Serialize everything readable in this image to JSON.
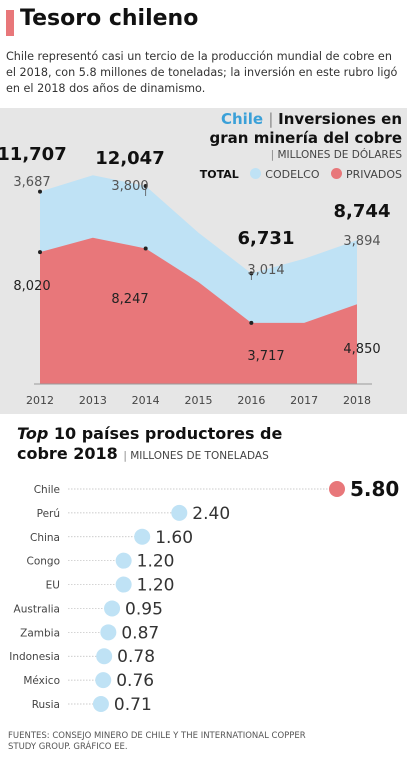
{
  "header": {
    "title": "Tesoro chileno",
    "accent_color": "#e8777a",
    "subtitle": "Chile representó casi un tercio de la producción mundial de cobre en el 2018, con 5.8 millones de toneladas; la inversión en este rubro ligó en el 2018 dos años de dinamismo."
  },
  "chart_data": [
    {
      "type": "area",
      "title_highlight": "Chile",
      "title_rest": "Inversiones en",
      "title_line2": "gran minería del cobre",
      "unit": "MILLONES DE DÓLARES",
      "legend": {
        "total": "TOTAL",
        "codelco": "CODELCO",
        "privados": "PRIVADOS"
      },
      "x": [
        2012,
        2013,
        2014,
        2015,
        2016,
        2017,
        2018
      ],
      "ylim": [
        0,
        13000
      ],
      "series": [
        {
          "name": "PRIVADOS",
          "values": [
            8020,
            8900,
            8247,
            6200,
            3717,
            3717,
            4850
          ],
          "color": "#e8777a"
        },
        {
          "name": "CODELCO",
          "values": [
            3687,
            3800,
            3800,
            3000,
            3014,
            3900,
            3894
          ],
          "color": "#bfe2f5"
        }
      ],
      "annotations": [
        {
          "year": 2012,
          "total": "11,707",
          "codelco": "3,687",
          "privados": "8,020"
        },
        {
          "year": 2014,
          "total": "12,047",
          "codelco": "3,800",
          "privados": "8,247"
        },
        {
          "year": 2016,
          "total": "6,731",
          "codelco": "3,014",
          "privados": "3,717"
        },
        {
          "year": 2018,
          "total": "8,744",
          "codelco": "3,894",
          "privados": "4,850"
        }
      ]
    },
    {
      "type": "dot",
      "title_italic": "Top",
      "title_rest": " 10 países productores de",
      "title_line2": "cobre 2018",
      "unit": "MILLONES DE TONELADAS",
      "categories": [
        "Chile",
        "Perú",
        "China",
        "Congo",
        "EU",
        "Australia",
        "Zambia",
        "Indonesia",
        "México",
        "Rusia"
      ],
      "values": [
        5.8,
        2.4,
        1.6,
        1.2,
        1.2,
        0.95,
        0.87,
        0.78,
        0.76,
        0.71
      ],
      "labels": [
        "5.80",
        "2.40",
        "1.60",
        "1.20",
        "1.20",
        "0.95",
        "0.87",
        "0.78",
        "0.76",
        "0.71"
      ],
      "xlim": [
        0,
        6.0
      ],
      "highlight_color": "#e8777a",
      "dot_color": "#bfe2f5"
    }
  ],
  "source": "FUENTES: CONSEJO MINERO DE CHILE Y THE INTERNATIONAL COPPER STUDY GROUP.    GRÁFICO EE."
}
